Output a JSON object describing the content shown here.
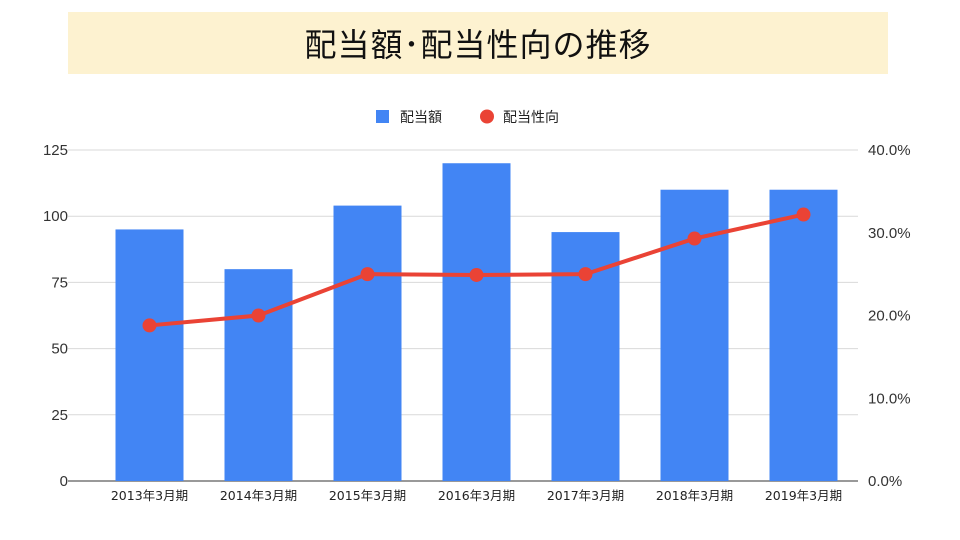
{
  "header": {
    "title": "配当額･配当性向の推移"
  },
  "colors": {
    "bar": "#4285f4",
    "line": "#ea4335",
    "banner": "#fdf2d0",
    "grid": "#d9d9d9"
  },
  "chart_data": {
    "type": "bar",
    "categories": [
      "2013年3月期",
      "2014年3月期",
      "2015年3月期",
      "2016年3月期",
      "2017年3月期",
      "2018年3月期",
      "2019年3月期"
    ],
    "series": [
      {
        "name": "配当額",
        "type": "bar",
        "axis": "left",
        "values": [
          95,
          80,
          104,
          120,
          94,
          110,
          110
        ]
      },
      {
        "name": "配当性向",
        "type": "line",
        "axis": "right",
        "values": [
          0.188,
          0.2,
          0.25,
          0.249,
          0.25,
          0.293,
          0.322
        ]
      }
    ],
    "y_left": {
      "ylim": [
        0,
        125
      ],
      "ticks": [
        "0",
        "25",
        "50",
        "75",
        "100",
        "125"
      ]
    },
    "y_right": {
      "ylim": [
        0,
        0.4
      ],
      "ticks": [
        "0.0%",
        "10.0%",
        "20.0%",
        "30.0%",
        "40.0%"
      ]
    },
    "legend": {
      "position": "top-center"
    },
    "grid": true
  }
}
